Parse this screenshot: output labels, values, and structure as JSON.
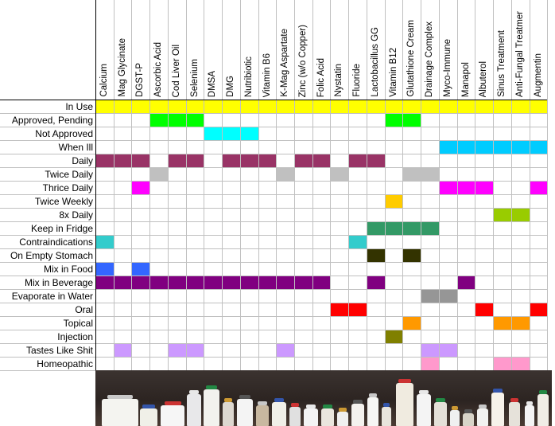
{
  "columns": [
    "Calcium",
    "Mag Glycinate",
    "DGST-P",
    "Ascorbic Acid",
    "Cod Liver Oil",
    "Selenium",
    "DMSA",
    "DMG",
    "Nutribiotic",
    "Vitamin B6",
    "K-Mag Aspartate",
    "Zinc (w/o Copper)",
    "Folic Acid",
    "Nystatin",
    "Fluoride",
    "Lactobacillus GG",
    "Vitamin B12",
    "Glutathione Cream",
    "Drainage Complex",
    "Myco-Immune",
    "Manapol",
    "Albuterol",
    "Sinus Treatment",
    "Anti-Fungal Treatmer",
    "Augmentin"
  ],
  "rows": [
    {
      "label": "In Use",
      "cells": [
        [
          0,
          "#ffff00"
        ],
        [
          1,
          "#ffff00"
        ],
        [
          2,
          "#ffff00"
        ],
        [
          3,
          "#ffff00"
        ],
        [
          4,
          "#ffff00"
        ],
        [
          5,
          "#ffff00"
        ],
        [
          6,
          "#ffff00"
        ],
        [
          7,
          "#ffff00"
        ],
        [
          8,
          "#ffff00"
        ],
        [
          9,
          "#ffff00"
        ],
        [
          10,
          "#ffff00"
        ],
        [
          11,
          "#ffff00"
        ],
        [
          12,
          "#ffff00"
        ],
        [
          13,
          "#ffff00"
        ],
        [
          14,
          "#ffff00"
        ],
        [
          15,
          "#ffff00"
        ],
        [
          16,
          "#ffff00"
        ],
        [
          17,
          "#ffff00"
        ],
        [
          18,
          "#ffff00"
        ],
        [
          19,
          "#ffff00"
        ],
        [
          20,
          "#ffff00"
        ],
        [
          21,
          "#ffff00"
        ],
        [
          22,
          "#ffff00"
        ],
        [
          23,
          "#ffff00"
        ],
        [
          24,
          "#ffff00"
        ]
      ]
    },
    {
      "label": "Approved, Pending",
      "cells": [
        [
          3,
          "#00ff00"
        ],
        [
          4,
          "#00ff00"
        ],
        [
          5,
          "#00ff00"
        ],
        [
          16,
          "#00ff00"
        ],
        [
          17,
          "#00ff00"
        ]
      ]
    },
    {
      "label": "Not Approved",
      "cells": [
        [
          6,
          "#00ffff"
        ],
        [
          7,
          "#00ffff"
        ],
        [
          8,
          "#00ffff"
        ]
      ]
    },
    {
      "label": "When Ill",
      "cells": [
        [
          19,
          "#00ccff"
        ],
        [
          20,
          "#00ccff"
        ],
        [
          21,
          "#00ccff"
        ],
        [
          22,
          "#00ccff"
        ],
        [
          23,
          "#00ccff"
        ],
        [
          24,
          "#00ccff"
        ]
      ]
    },
    {
      "label": "Daily",
      "cells": [
        [
          0,
          "#993366"
        ],
        [
          1,
          "#993366"
        ],
        [
          2,
          "#993366"
        ],
        [
          4,
          "#993366"
        ],
        [
          5,
          "#993366"
        ],
        [
          7,
          "#993366"
        ],
        [
          8,
          "#993366"
        ],
        [
          9,
          "#993366"
        ],
        [
          11,
          "#993366"
        ],
        [
          12,
          "#993366"
        ],
        [
          14,
          "#993366"
        ],
        [
          15,
          "#993366"
        ]
      ]
    },
    {
      "label": "Twice Daily",
      "cells": [
        [
          3,
          "#c0c0c0"
        ],
        [
          10,
          "#c0c0c0"
        ],
        [
          13,
          "#c0c0c0"
        ],
        [
          17,
          "#c0c0c0"
        ],
        [
          18,
          "#c0c0c0"
        ]
      ]
    },
    {
      "label": "Thrice Daily",
      "cells": [
        [
          2,
          "#ff00ff"
        ],
        [
          19,
          "#ff00ff"
        ],
        [
          20,
          "#ff00ff"
        ],
        [
          21,
          "#ff00ff"
        ],
        [
          24,
          "#ff00ff"
        ]
      ]
    },
    {
      "label": "Twice Weekly",
      "cells": [
        [
          16,
          "#ffcc00"
        ]
      ]
    },
    {
      "label": "8x Daily",
      "cells": [
        [
          22,
          "#99cc00"
        ],
        [
          23,
          "#99cc00"
        ]
      ]
    },
    {
      "label": "Keep in Fridge",
      "cells": [
        [
          15,
          "#339966"
        ],
        [
          16,
          "#339966"
        ],
        [
          17,
          "#339966"
        ],
        [
          18,
          "#339966"
        ]
      ]
    },
    {
      "label": "Contraindications",
      "cells": [
        [
          0,
          "#33cccc"
        ],
        [
          14,
          "#33cccc"
        ]
      ]
    },
    {
      "label": "On Empty Stomach",
      "cells": [
        [
          15,
          "#333300"
        ],
        [
          17,
          "#333300"
        ]
      ]
    },
    {
      "label": "Mix in Food",
      "cells": [
        [
          0,
          "#3366ff"
        ],
        [
          2,
          "#3366ff"
        ]
      ]
    },
    {
      "label": "Mix in Beverage",
      "cells": [
        [
          0,
          "#800080"
        ],
        [
          1,
          "#800080"
        ],
        [
          2,
          "#800080"
        ],
        [
          3,
          "#800080"
        ],
        [
          4,
          "#800080"
        ],
        [
          5,
          "#800080"
        ],
        [
          6,
          "#800080"
        ],
        [
          7,
          "#800080"
        ],
        [
          8,
          "#800080"
        ],
        [
          9,
          "#800080"
        ],
        [
          10,
          "#800080"
        ],
        [
          11,
          "#800080"
        ],
        [
          12,
          "#800080"
        ],
        [
          15,
          "#800080"
        ],
        [
          20,
          "#800080"
        ]
      ]
    },
    {
      "label": "Evaporate in Water",
      "cells": [
        [
          18,
          "#969696"
        ],
        [
          19,
          "#969696"
        ]
      ]
    },
    {
      "label": "Oral",
      "cells": [
        [
          13,
          "#ff0000"
        ],
        [
          14,
          "#ff0000"
        ],
        [
          21,
          "#ff0000"
        ],
        [
          24,
          "#ff0000"
        ]
      ]
    },
    {
      "label": "Topical",
      "cells": [
        [
          17,
          "#ff9900"
        ],
        [
          22,
          "#ff9900"
        ],
        [
          23,
          "#ff9900"
        ]
      ]
    },
    {
      "label": "Injection",
      "cells": [
        [
          16,
          "#808000"
        ]
      ]
    },
    {
      "label": "Tastes Like Shit",
      "cells": [
        [
          1,
          "#cc99ff"
        ],
        [
          4,
          "#cc99ff"
        ],
        [
          5,
          "#cc99ff"
        ],
        [
          10,
          "#cc99ff"
        ],
        [
          18,
          "#cc99ff"
        ],
        [
          19,
          "#cc99ff"
        ]
      ]
    },
    {
      "label": "Homeopathic",
      "cells": [
        [
          18,
          "#ff99cc"
        ],
        [
          22,
          "#ff99cc"
        ],
        [
          23,
          "#ff99cc"
        ]
      ]
    }
  ]
}
